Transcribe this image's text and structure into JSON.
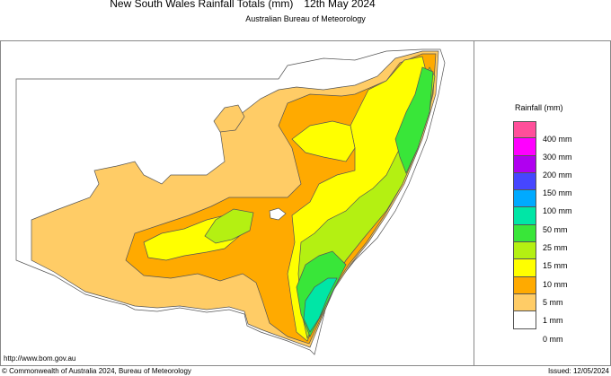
{
  "header": {
    "title": "New South Wales Rainfall Totals (mm)",
    "date": "12th May 2024",
    "subtitle": "Australian Bureau of Meteorology"
  },
  "footer": {
    "url": "http://www.bom.gov.au",
    "copyright": "© Commonwealth of Australia 2024, Bureau of Meteorology",
    "issued": "Issued: 12/05/2024"
  },
  "legend": {
    "title": "Rainfall (mm)",
    "colors": [
      "#ff4f9a",
      "#ff00ff",
      "#b000f0",
      "#4646ff",
      "#00aaff",
      "#00e6a6",
      "#39e639",
      "#b4f012",
      "#ffff00",
      "#ffaa00",
      "#ffcc66",
      "#ffffff"
    ],
    "labels": [
      "400 mm",
      "300 mm",
      "200 mm",
      "150 mm",
      "100 mm",
      "50 mm",
      "25 mm",
      "15 mm",
      "10 mm",
      "5 mm",
      "1 mm",
      "0 mm"
    ]
  }
}
